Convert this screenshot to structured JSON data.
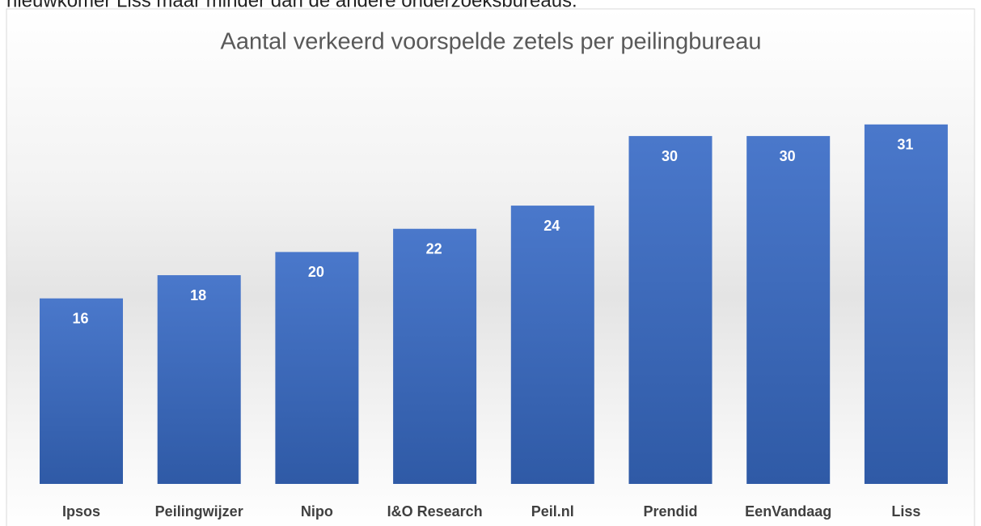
{
  "intro_text": "nieuwkomer Liss maar minder dan de andere onderzoeksbureaus.",
  "chart_data": {
    "type": "bar",
    "title": "Aantal verkeerd voorspelde zetels per peilingbureau",
    "categories": [
      "Ipsos",
      "Peilingwijzer",
      "Nipo",
      "I&O Research",
      "Peil.nl",
      "Prendid",
      "EenVandaag",
      "Liss"
    ],
    "values": [
      16,
      18,
      20,
      22,
      24,
      30,
      30,
      31
    ],
    "color": "#4472c4"
  }
}
